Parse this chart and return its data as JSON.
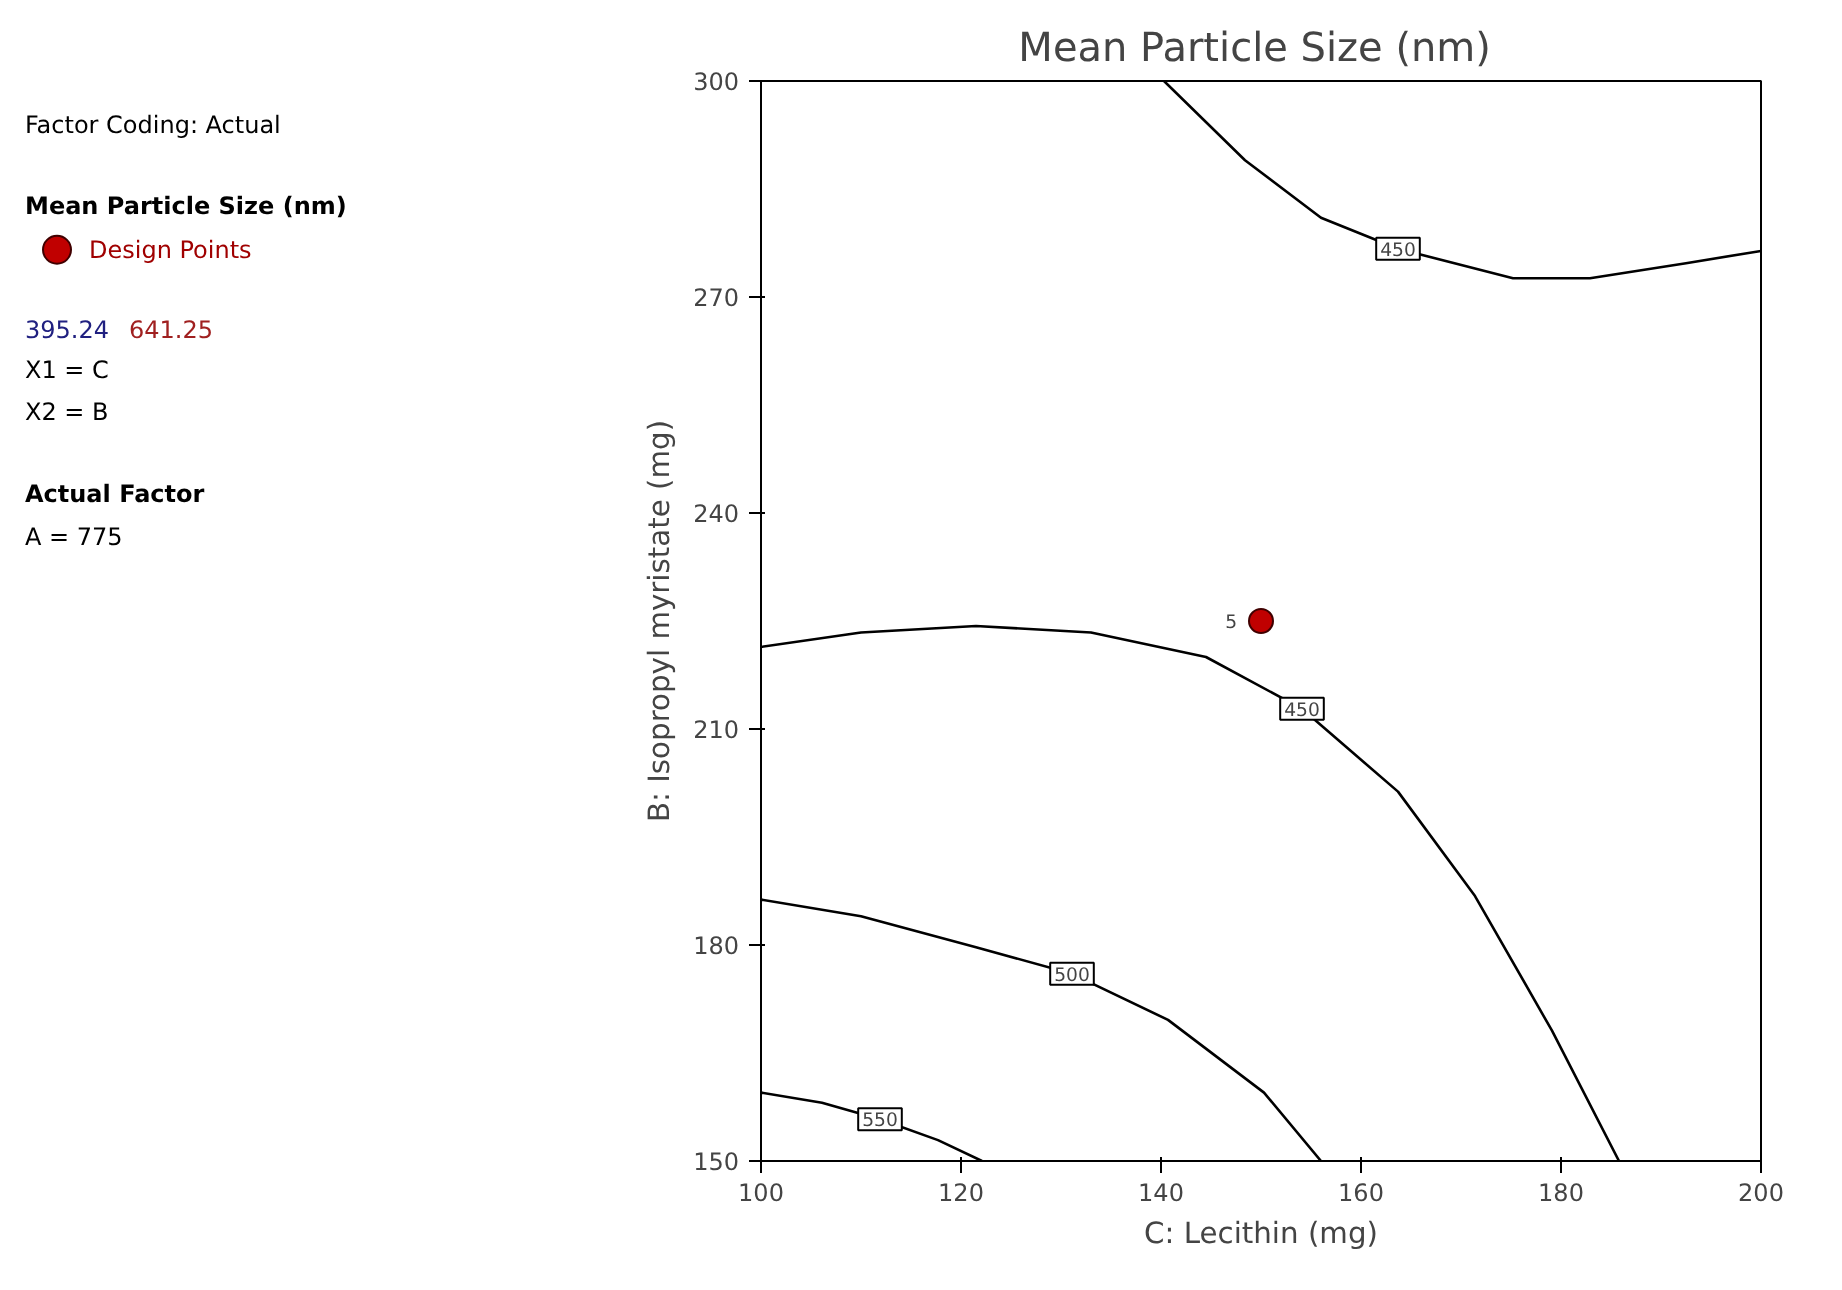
{
  "chart_data": {
    "type": "line",
    "title": "Mean Particle Size  (nm)",
    "xlabel": "C: Lecithin (mg)",
    "ylabel": "B: Isopropyl myristate (mg)",
    "legend_title": "Mean Particle Size  (nm)",
    "legend": "left",
    "xlim": [
      100,
      200
    ],
    "ylim": [
      150,
      300
    ],
    "xticks": [
      100,
      120,
      140,
      160,
      180,
      200
    ],
    "yticks": [
      150,
      180,
      210,
      240,
      270,
      300
    ],
    "grid": false,
    "series": [
      {
        "color": "#000000",
        "x": [
          140.3,
          148.4,
          156,
          163.7,
          175.2,
          182.9,
          192.5,
          200
        ],
        "values": [
          300,
          289,
          281,
          276.7,
          272.6,
          272.6,
          274.7,
          276.4
        ]
      },
      {
        "color": "#000000",
        "x": [
          100,
          110,
          121.5,
          133,
          144.5,
          154.1,
          163.7,
          171.4,
          179.1,
          185.8
        ],
        "values": [
          221.4,
          223.4,
          224.3,
          223.4,
          220,
          212.8,
          201.3,
          186.8,
          168.1,
          150
        ]
      },
      {
        "color": "#000000",
        "x": [
          100,
          110,
          121.5,
          131.1,
          140.7,
          150.3,
          156
        ],
        "values": [
          186.3,
          184,
          179.7,
          176,
          169.6,
          159.5,
          150
        ]
      },
      {
        "color": "#000000",
        "x": [
          100,
          106.1,
          111.9,
          117.7,
          122.1
        ],
        "values": [
          159.5,
          158.1,
          155.8,
          152.9,
          150
        ]
      },
      {
        "type": "scatter",
        "name": "Design Points",
        "color": "#c00000",
        "marker": "circle",
        "x": [
          150
        ],
        "values": [
          225
        ]
      }
    ],
    "annotations": [
      "Factor Coding: Actual",
      "395.24",
      "641.25",
      "X1 = C",
      "X2 = B",
      "Actual Factor",
      "A = 775",
      {
        "text": "450",
        "x": 163.7,
        "y": 276.7
      },
      {
        "text": "450",
        "x": 154.1,
        "y": 212.8
      },
      {
        "text": "500",
        "x": 131.1,
        "y": 176
      },
      {
        "text": "550",
        "x": 111.9,
        "y": 155.8
      },
      {
        "text": "5",
        "x": 150,
        "y": 225
      }
    ]
  }
}
